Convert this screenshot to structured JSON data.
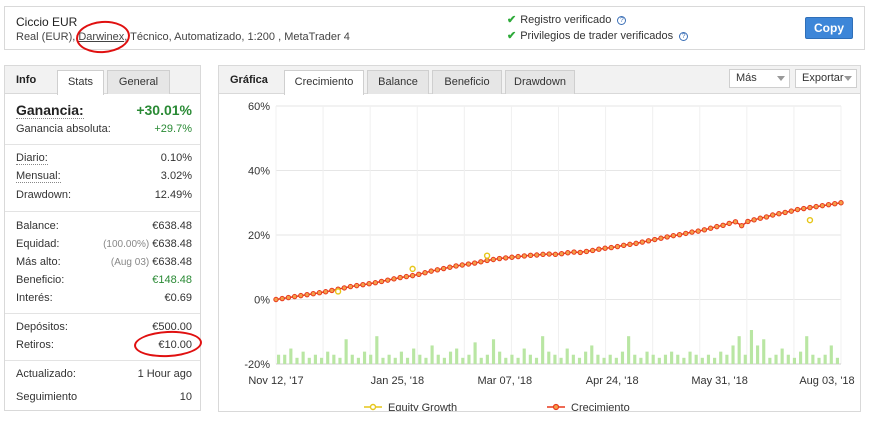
{
  "header": {
    "account_name": "Ciccio EUR",
    "sub_prefix": "Real (EUR), ",
    "broker": "Darwinex",
    "sub_suffix": ", Técnico, Automatizado, 1:200 , MetaTrader 4",
    "verified_record": "Registro verificado",
    "verified_privileges": "Privilegios de trader verificados",
    "copy_label": "Copy",
    "help_glyph": "?"
  },
  "left": {
    "label": "Info",
    "tabs": [
      "Stats",
      "General"
    ],
    "gain": {
      "label": "Ganancia:",
      "value": "+30.01%"
    },
    "abs_gain": {
      "label": "Ganancia absoluta:",
      "value": "+29.7%"
    },
    "daily": {
      "label": "Diario:",
      "value": "0.10%"
    },
    "monthly": {
      "label": "Mensual:",
      "value": "3.02%"
    },
    "drawdown": {
      "label": "Drawdown:",
      "value": "12.49%"
    },
    "balance": {
      "label": "Balance:",
      "value": "€638.48"
    },
    "equity": {
      "label": "Equidad:",
      "note": "(100.00%)",
      "value": "€638.48"
    },
    "highest": {
      "label": "Más alto:",
      "note": "(Aug 03)",
      "value": "€638.48"
    },
    "profit": {
      "label": "Beneficio:",
      "value": "€148.48"
    },
    "interest": {
      "label": "Interés:",
      "value": "€0.69"
    },
    "deposits": {
      "label": "Depósitos:",
      "value": "€500.00"
    },
    "withdrawals": {
      "label": "Retiros:",
      "value": "€10.00"
    },
    "updated": {
      "label": "Actualizado:",
      "value": "1 Hour ago"
    },
    "followers": {
      "label": "Seguimiento",
      "value": "10"
    }
  },
  "right": {
    "label": "Gráfica",
    "tabs": [
      "Crecimiento",
      "Balance",
      "Beneficio",
      "Drawdown"
    ],
    "more_label": "Más",
    "export_label": "Exportar"
  },
  "colors": {
    "growth_line": "#e8391d",
    "growth_marker_fill": "#f4a04a",
    "equity_marker": "#e6c619",
    "volume_bars": "#b9e6a3",
    "verified_check": "#2eaa3a",
    "copy_button": "#3d86d8",
    "annotation": "#e01010"
  },
  "chart_data": {
    "type": "line",
    "title": "",
    "xlabel": "",
    "ylabel": "",
    "ylim": [
      -20,
      60
    ],
    "yticks": [
      "60%",
      "40%",
      "20%",
      "0%",
      "-20%"
    ],
    "ytick_values": [
      60,
      40,
      20,
      0,
      -20
    ],
    "xtick_labels": [
      "Nov 12, '17",
      "Jan 25, '18",
      "Mar 07, '18",
      "Apr 24, '18",
      "May 31, '18",
      "Aug 03, '18"
    ],
    "grid": true,
    "legend": {
      "position": "bottom",
      "entries": [
        "Equity Growth",
        "Crecimiento"
      ]
    },
    "series": [
      {
        "name": "Crecimiento",
        "values": [
          0,
          0.3,
          0.6,
          0.9,
          1.2,
          1.5,
          1.8,
          2.1,
          2.4,
          2.8,
          3.2,
          3.6,
          4.0,
          4.3,
          4.6,
          4.9,
          5.2,
          5.6,
          6.0,
          6.4,
          6.8,
          7.1,
          7.4,
          7.8,
          8.3,
          8.8,
          9.2,
          9.6,
          10.0,
          10.4,
          10.7,
          11.0,
          11.3,
          11.7,
          12.1,
          12.4,
          12.7,
          12.9,
          13.1,
          13.3,
          13.5,
          13.7,
          13.8,
          14.0,
          14.1,
          14.0,
          14.2,
          14.5,
          14.7,
          14.6,
          14.9,
          15.2,
          15.6,
          15.9,
          16.1,
          16.4,
          16.8,
          17.1,
          17.4,
          17.8,
          18.2,
          18.6,
          19.0,
          19.4,
          19.8,
          20.1,
          20.5,
          20.9,
          21.2,
          21.6,
          22.1,
          22.6,
          23.0,
          23.6,
          24.1,
          22.9,
          24.2,
          24.7,
          25.2,
          25.6,
          26.2,
          26.6,
          27.0,
          27.4,
          27.9,
          28.2,
          28.5,
          28.8,
          29.1,
          29.4,
          29.7,
          30.0
        ]
      },
      {
        "name": "Equity Growth",
        "points": [
          [
            10,
            2.5
          ],
          [
            22,
            9.5
          ],
          [
            34,
            13.6
          ],
          [
            86,
            24.6
          ]
        ]
      }
    ],
    "volume_values": [
      3,
      3,
      5,
      2,
      4,
      2,
      3,
      2,
      4,
      3,
      2,
      8,
      3,
      2,
      4,
      3,
      9,
      2,
      3,
      2,
      4,
      2,
      5,
      3,
      2,
      6,
      3,
      2,
      4,
      5,
      2,
      3,
      7,
      2,
      3,
      8,
      4,
      2,
      3,
      2,
      5,
      3,
      2,
      9,
      4,
      3,
      2,
      5,
      3,
      2,
      4,
      6,
      3,
      2,
      3,
      2,
      4,
      9,
      3,
      2,
      4,
      3,
      2,
      3,
      4,
      3,
      2,
      4,
      3,
      2,
      3,
      2,
      4,
      3,
      6,
      9,
      3,
      11,
      6,
      8,
      2,
      3,
      5,
      3,
      2,
      4,
      9,
      3,
      2,
      3,
      6,
      2
    ],
    "volume_note": "volume bars are relative heights (no scale printed)"
  }
}
